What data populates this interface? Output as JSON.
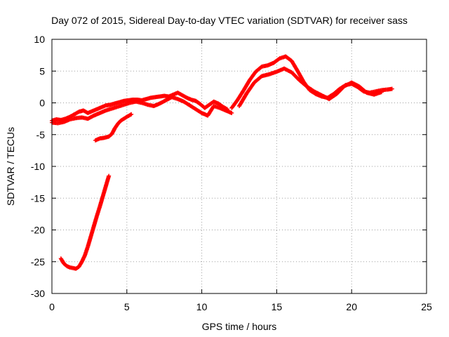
{
  "chart_data": {
    "type": "scatter",
    "title": "Day 072 of 2015, Sidereal Day-to-day VTEC variation (SDTVAR) for receiver sass",
    "xlabel": "GPS time / hours",
    "ylabel": "SDTVAR / TECUs",
    "xlim": [
      0,
      25
    ],
    "ylim": [
      -30,
      10
    ],
    "xticks": [
      0,
      5,
      10,
      15,
      20,
      25
    ],
    "yticks": [
      -30,
      -25,
      -20,
      -15,
      -10,
      -5,
      0,
      5,
      10
    ],
    "grid": true,
    "marker": "+",
    "series": [
      {
        "name": "SDTVAR",
        "color": "#ff0000",
        "segments": [
          {
            "x": [
              0.0,
              0.3,
              0.6,
              0.9,
              1.2,
              1.5,
              1.8,
              2.1,
              2.4,
              2.7,
              3.0,
              3.3,
              3.6,
              3.9,
              4.2,
              4.5,
              4.8,
              5.1,
              5.4,
              5.7,
              6.0,
              6.3,
              6.6,
              6.9,
              7.2,
              7.5,
              7.8,
              8.1,
              8.4,
              8.7,
              9.0,
              9.3,
              9.6,
              9.9,
              10.2,
              10.5,
              10.8,
              11.1,
              11.4,
              11.7
            ],
            "y": [
              -2.8,
              -2.6,
              -2.7,
              -2.5,
              -2.2,
              -1.8,
              -1.4,
              -1.2,
              -1.6,
              -1.3,
              -1.0,
              -0.7,
              -0.4,
              -0.3,
              -0.1,
              0.1,
              0.3,
              0.4,
              0.5,
              0.5,
              0.4,
              0.6,
              0.8,
              0.9,
              1.0,
              1.1,
              1.0,
              1.3,
              1.6,
              1.2,
              0.8,
              0.5,
              0.3,
              -0.2,
              -0.8,
              -0.3,
              0.2,
              -0.1,
              -0.6,
              -1.0
            ]
          },
          {
            "x": [
              0.0,
              0.4,
              0.8,
              1.2,
              1.6,
              2.0,
              2.4,
              2.8,
              3.2,
              3.6,
              4.0,
              4.4,
              4.8,
              5.2,
              5.6,
              6.0,
              6.4,
              6.8,
              7.2,
              7.6,
              8.0,
              8.4,
              8.8,
              9.2,
              9.6,
              10.0,
              10.4,
              10.8,
              11.2,
              11.6,
              12.0
            ],
            "y": [
              -3.1,
              -3.2,
              -3.0,
              -2.6,
              -2.4,
              -2.3,
              -2.5,
              -2.0,
              -1.6,
              -1.2,
              -0.9,
              -0.6,
              -0.3,
              0.0,
              0.2,
              0.0,
              -0.3,
              -0.5,
              -0.1,
              0.4,
              0.9,
              0.6,
              0.2,
              -0.4,
              -1.0,
              -1.6,
              -2.0,
              -0.5,
              -0.8,
              -1.2,
              -1.6
            ]
          },
          {
            "x": [
              0.6,
              0.8,
              1.0,
              1.2,
              1.4,
              1.6,
              1.8,
              2.0,
              2.2,
              2.4,
              2.6,
              2.8,
              3.0,
              3.2,
              3.4,
              3.6,
              3.8
            ],
            "y": [
              -24.5,
              -25.3,
              -25.7,
              -25.9,
              -26.0,
              -26.1,
              -25.8,
              -25.0,
              -24.0,
              -22.6,
              -21.0,
              -19.4,
              -17.8,
              -16.3,
              -14.7,
              -13.1,
              -11.5
            ]
          },
          {
            "x": [
              2.9,
              3.2,
              3.5,
              3.8,
              4.0,
              4.2,
              4.4,
              4.6,
              4.8,
              5.0,
              5.3
            ],
            "y": [
              -5.9,
              -5.6,
              -5.5,
              -5.3,
              -4.9,
              -4.0,
              -3.3,
              -2.8,
              -2.5,
              -2.2,
              -1.8
            ]
          },
          {
            "x": [
              12.0,
              12.4,
              12.8,
              13.2,
              13.6,
              14.0,
              14.4,
              14.8,
              15.2,
              15.6,
              16.0,
              16.4,
              16.8,
              17.2,
              17.6,
              18.0,
              18.4,
              18.8,
              19.2,
              19.6,
              20.0,
              20.4,
              20.8,
              21.2,
              21.6,
              22.0,
              22.4,
              22.7
            ],
            "y": [
              -0.8,
              0.5,
              2.0,
              3.6,
              4.9,
              5.7,
              5.9,
              6.3,
              7.0,
              7.3,
              6.6,
              5.0,
              3.3,
              2.0,
              1.4,
              1.0,
              0.8,
              1.4,
              2.2,
              2.8,
              3.0,
              2.5,
              1.8,
              1.6,
              1.8,
              2.0,
              2.1,
              2.2
            ]
          },
          {
            "x": [
              12.5,
              13.0,
              13.5,
              14.0,
              14.5,
              15.0,
              15.5,
              16.0,
              16.5,
              17.0,
              17.5,
              18.0,
              18.5,
              19.0,
              19.5,
              20.0,
              20.5,
              21.0,
              21.5,
              22.0
            ],
            "y": [
              -0.5,
              1.5,
              3.2,
              4.2,
              4.5,
              4.9,
              5.4,
              4.8,
              3.6,
              2.6,
              1.8,
              1.2,
              0.6,
              1.4,
              2.6,
              3.2,
              2.6,
              1.6,
              1.3,
              1.7
            ]
          }
        ]
      }
    ]
  }
}
